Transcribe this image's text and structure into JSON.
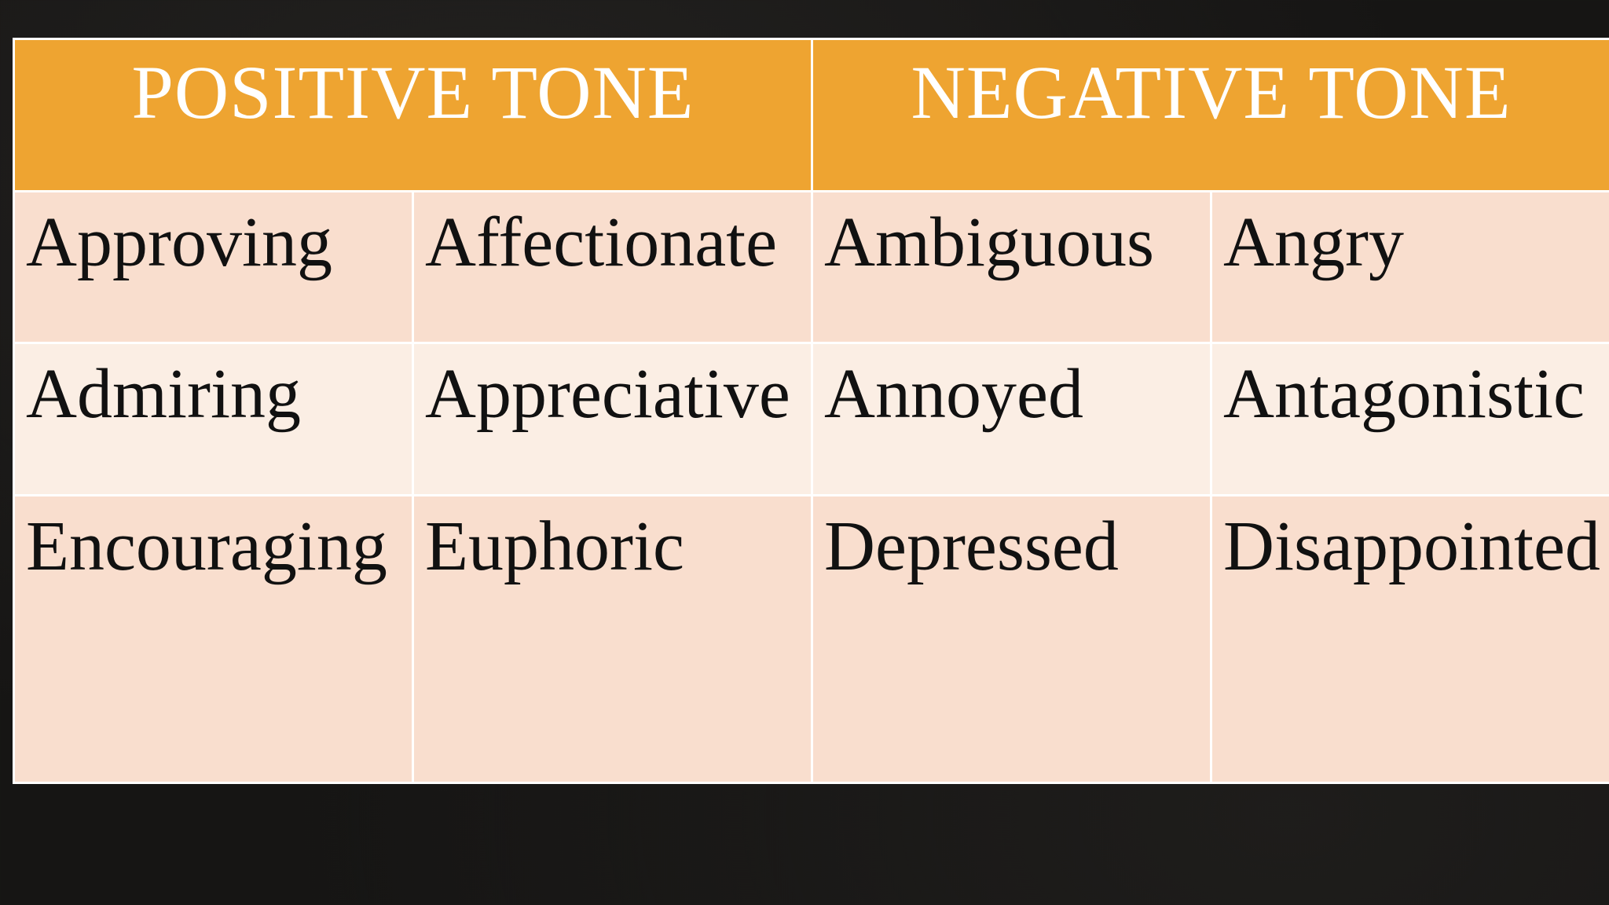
{
  "table": {
    "headers": [
      "POSITIVE TONE",
      "NEGATIVE TONE"
    ],
    "rows": [
      [
        "Approving",
        "Affectionate",
        "Ambiguous",
        "Angry"
      ],
      [
        "Admiring",
        "Appreciative",
        "Annoyed",
        "Antagonistic"
      ],
      [
        "Encouraging",
        "Euphoric",
        "Depressed",
        "Disappointed"
      ]
    ]
  },
  "colors": {
    "header_background": "#eea431",
    "header_text": "#ffffff",
    "row_odd_background": "#f9dece",
    "row_even_background": "#fbeee4",
    "slide_background": "#161514"
  }
}
